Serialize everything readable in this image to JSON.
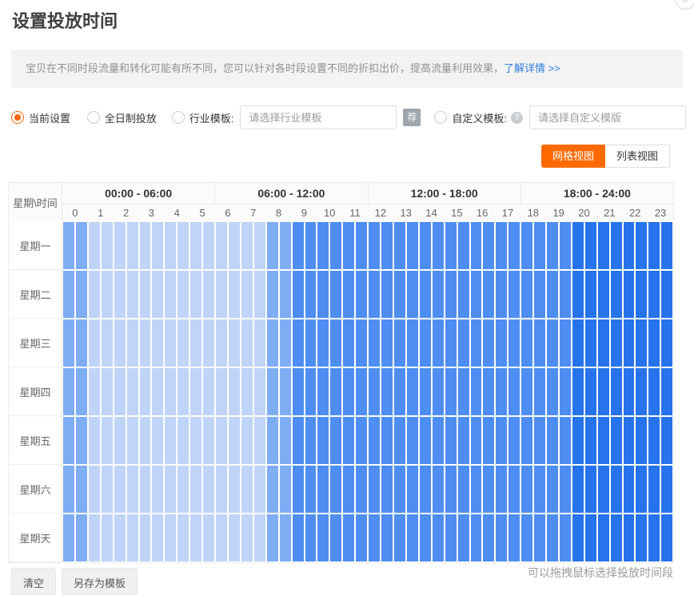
{
  "dialog": {
    "title": "设置投放时间",
    "close_glyph": "×"
  },
  "banner": {
    "text": "宝贝在不同时段流量和转化可能有所不同，您可以针对各时段设置不同的折扣出价，提高流量利用效果，",
    "link": "了解详情 >>"
  },
  "options": {
    "current_setting": "当前设置",
    "full_day": "全日制投放",
    "industry_template": "行业模板:",
    "industry_placeholder": "请选择行业模板",
    "recommend_badge": "荐",
    "custom_template": "自定义模板:",
    "help_glyph": "?",
    "custom_placeholder": "请选择自定义模版"
  },
  "view_toggle": {
    "grid_label": "网格视图",
    "list_label": "列表视图",
    "active": "grid",
    "active_color": "#ff6a00"
  },
  "schedule": {
    "corner_label": "星期\\时间",
    "time_ranges": [
      "00:00 - 06:00",
      "06:00 - 12:00",
      "12:00 - 18:00",
      "18:00 - 24:00"
    ],
    "hours": [
      "0",
      "1",
      "2",
      "3",
      "4",
      "5",
      "6",
      "7",
      "8",
      "9",
      "10",
      "11",
      "12",
      "13",
      "14",
      "15",
      "16",
      "17",
      "18",
      "19",
      "20",
      "21",
      "22",
      "23"
    ],
    "days": [
      "星期一",
      "星期二",
      "星期三",
      "星期四",
      "星期五",
      "星期六",
      "星期天"
    ],
    "hour_levels": [
      1,
      0,
      0,
      0,
      0,
      0,
      0,
      0,
      1,
      2,
      2,
      2,
      2,
      2,
      2,
      2,
      2,
      2,
      2,
      2,
      3,
      3,
      3,
      3
    ],
    "palette": {
      "0": "#c0d4f8",
      "1": "#7fadf4",
      "2": "#4e8ef2",
      "3": "#2673ec"
    },
    "cells_per_hour": 2
  },
  "footer": {
    "clear": "清空",
    "save_template": "另存为模板",
    "hint": "可以拖拽鼠标选择投放时间段"
  }
}
